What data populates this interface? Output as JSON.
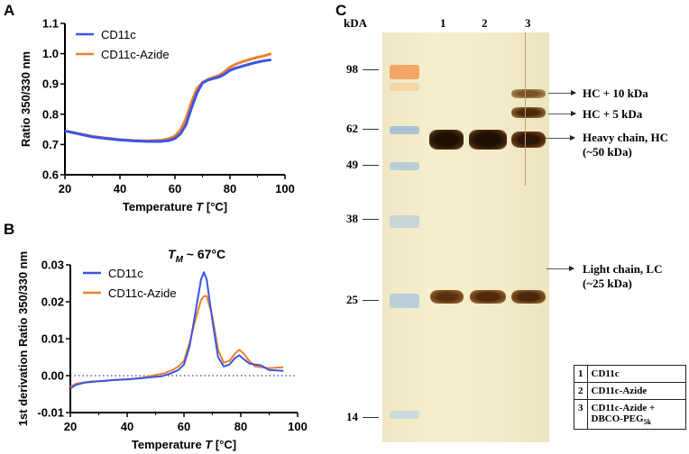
{
  "panels": {
    "a": "A",
    "b": "B",
    "c": "C"
  },
  "chart_data": [
    {
      "type": "line",
      "xlabel": "Temperature T [°C]",
      "ylabel": "Ratio 350/330 nm",
      "xlim": [
        20,
        100
      ],
      "ylim": [
        0.6,
        1.1
      ],
      "xticks": [
        20,
        40,
        60,
        80,
        100
      ],
      "yticks": [
        0.6,
        0.7,
        0.8,
        0.9,
        1.0,
        1.1
      ],
      "ytick_labels": [
        "0.6",
        "0.7",
        "0.8",
        "0.9",
        "1.0",
        "1.1"
      ],
      "legend": "top-left",
      "grid": false,
      "series": [
        {
          "name": "CD11c",
          "color": "#3a55e6",
          "x": [
            20,
            25,
            30,
            35,
            40,
            45,
            50,
            55,
            58,
            60,
            62,
            64,
            66,
            68,
            70,
            72,
            74,
            76,
            78,
            80,
            82,
            85,
            88,
            90,
            92,
            95
          ],
          "y": [
            0.745,
            0.735,
            0.725,
            0.72,
            0.715,
            0.712,
            0.71,
            0.71,
            0.713,
            0.72,
            0.735,
            0.765,
            0.82,
            0.87,
            0.903,
            0.913,
            0.918,
            0.923,
            0.932,
            0.945,
            0.952,
            0.96,
            0.968,
            0.972,
            0.976,
            0.98
          ]
        },
        {
          "name": "CD11c-Azide",
          "color": "#f07f2a",
          "x": [
            20,
            25,
            30,
            35,
            40,
            45,
            50,
            55,
            58,
            60,
            62,
            64,
            66,
            68,
            70,
            72,
            74,
            76,
            78,
            80,
            82,
            85,
            88,
            90,
            92,
            95
          ],
          "y": [
            0.745,
            0.736,
            0.727,
            0.721,
            0.716,
            0.713,
            0.712,
            0.714,
            0.72,
            0.728,
            0.748,
            0.785,
            0.84,
            0.885,
            0.905,
            0.915,
            0.922,
            0.928,
            0.94,
            0.955,
            0.965,
            0.975,
            0.983,
            0.988,
            0.992,
            1.0
          ]
        }
      ]
    },
    {
      "type": "line",
      "title": "T_M ~ 67°C",
      "title_main": "T",
      "title_sub": "M",
      "title_rest": " ~ 67°C",
      "xlabel": "Temperature T [°C]",
      "ylabel": "1st derivation Ratio 350/330 nm",
      "xlim": [
        20,
        100
      ],
      "ylim": [
        -0.01,
        0.03
      ],
      "xticks": [
        20,
        40,
        60,
        80,
        100
      ],
      "yticks": [
        -0.01,
        0.0,
        0.01,
        0.02,
        0.03
      ],
      "ytick_labels": [
        "-0.01",
        "0.00",
        "0.01",
        "0.02",
        "0.03"
      ],
      "reference_line": 0,
      "legend": "top-left",
      "grid": false,
      "series": [
        {
          "name": "CD11c",
          "color": "#3a55e6",
          "x": [
            20,
            22,
            25,
            30,
            35,
            40,
            45,
            50,
            52,
            55,
            58,
            60,
            62,
            64,
            66,
            67,
            68,
            70,
            72,
            74,
            76,
            78,
            79.5,
            81,
            83,
            85,
            87,
            90,
            95
          ],
          "y": [
            -0.0035,
            -0.0025,
            -0.0019,
            -0.0015,
            -0.0012,
            -0.001,
            -0.0007,
            -0.0003,
            -0.0002,
            0.0005,
            0.0015,
            0.003,
            0.008,
            0.017,
            0.026,
            0.028,
            0.026,
            0.015,
            0.005,
            0.0025,
            0.003,
            0.0048,
            0.0055,
            0.0045,
            0.0033,
            0.003,
            0.0028,
            0.0015,
            0.0013
          ]
        },
        {
          "name": "CD11c-Azide",
          "color": "#f07f2a",
          "x": [
            20,
            22,
            25,
            28,
            32,
            35,
            40,
            45,
            50,
            53,
            56,
            58,
            60,
            62,
            64,
            66,
            67,
            68,
            70,
            72,
            74,
            76,
            78,
            79.5,
            81,
            83,
            85,
            88,
            90,
            95
          ],
          "y": [
            -0.003,
            -0.0022,
            -0.0018,
            -0.0015,
            -0.0015,
            -0.0012,
            -0.001,
            -0.0006,
            0.0002,
            0.0006,
            0.0015,
            0.0025,
            0.004,
            0.009,
            0.015,
            0.0205,
            0.0215,
            0.0215,
            0.016,
            0.007,
            0.0035,
            0.004,
            0.006,
            0.007,
            0.006,
            0.004,
            0.0025,
            0.0022,
            0.002,
            0.0023
          ]
        }
      ]
    }
  ],
  "gel": {
    "unit_label": "kDA",
    "markers": [
      "98",
      "62",
      "49",
      "38",
      "25",
      "14"
    ],
    "lanes": [
      "1",
      "2",
      "3"
    ],
    "annotations": {
      "hc10": "HC + 10 kDa",
      "hc5": "HC + 5 kDa",
      "hc_line1": "Heavy chain, HC",
      "hc_line2": "(~50 kDa)",
      "lc_line1": "Light chain, LC",
      "lc_line2": "(~25 kDa)"
    },
    "legend": [
      {
        "lane": "1",
        "label": "CD11c"
      },
      {
        "lane": "2",
        "label": "CD11c-Azide"
      },
      {
        "lane": "3",
        "label": "CD11c-Azide +",
        "label2": "DBCO-PEG",
        "sub": "5k"
      }
    ]
  }
}
